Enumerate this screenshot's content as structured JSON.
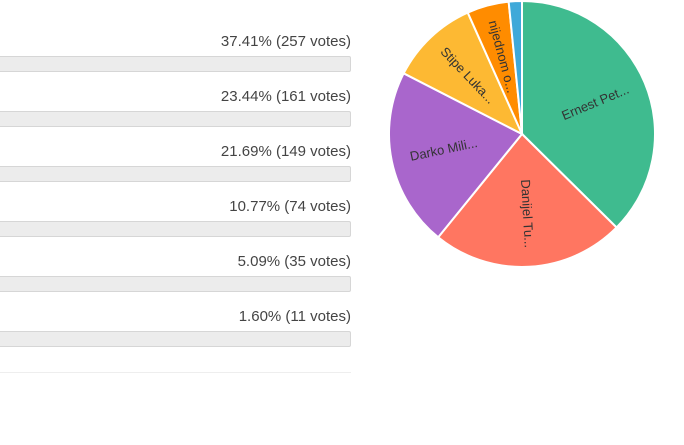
{
  "results": [
    "37.41% (257 votes)",
    "23.44% (161 votes)",
    "21.69% (149 votes)",
    "10.77% (74 votes)",
    "5.09% (35 votes)",
    "1.60% (11 votes)"
  ],
  "chart_data": {
    "type": "pie",
    "categories": [
      "Ernest Pet...",
      "Danijel Tu...",
      "Darko Mili...",
      "Stipe Luka...",
      "nijednom o...",
      null
    ],
    "values": [
      37.41,
      23.44,
      21.69,
      10.77,
      5.09,
      1.6
    ],
    "colors": [
      "#3fbb8f",
      "#ff7661",
      "#a966cc",
      "#fdb933",
      "#ff8c00",
      "#3fa9d9"
    ]
  }
}
